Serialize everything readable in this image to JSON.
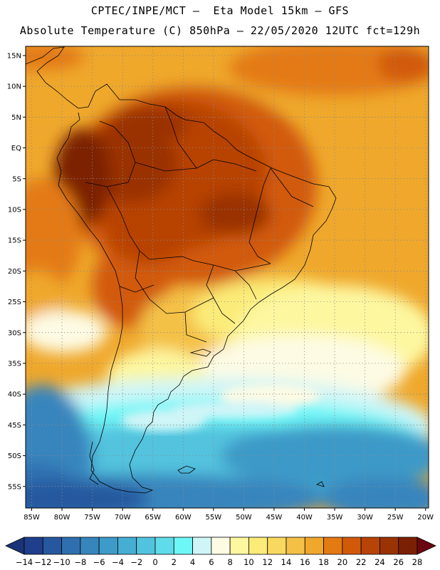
{
  "title": {
    "line1": "CPTEC/INPE/MCT –  Eta Model 15km – GFS",
    "line2": "Absolute Temperature (C) 850hPa – 22/05/2020 12UTC fct=129h"
  },
  "axes": {
    "lat_labels": [
      "15N",
      "10N",
      "5N",
      "EQ",
      "5S",
      "10S",
      "15S",
      "20S",
      "25S",
      "30S",
      "35S",
      "40S",
      "45S",
      "50S",
      "55S"
    ],
    "lon_labels": [
      "85W",
      "80W",
      "75W",
      "70W",
      "65W",
      "60W",
      "55W",
      "50W",
      "45W",
      "40W",
      "35W",
      "30W",
      "25W",
      "20W"
    ]
  },
  "extent": {
    "lon_min": -86,
    "lon_max": -19.5,
    "lat_min": -58.5,
    "lat_max": 16.5
  },
  "colorbar": {
    "labels": [
      "-14",
      "-12",
      "-10",
      "-8",
      "-6",
      "-4",
      "-2",
      "0",
      "2",
      "4",
      "6",
      "8",
      "10",
      "12",
      "14",
      "16",
      "18",
      "20",
      "22",
      "24",
      "26",
      "28"
    ],
    "colors": [
      "#1f3e8c",
      "#27589f",
      "#2f6fb0",
      "#3785bd",
      "#3e9ac8",
      "#46aed3",
      "#52c3de",
      "#60dbe9",
      "#6ef7f7",
      "#cff5f7",
      "#fdfbe4",
      "#fdf7a0",
      "#fbeb78",
      "#f8d960",
      "#f4c146",
      "#efa82c",
      "#e47a12",
      "#d15a0a",
      "#b84306",
      "#9a3304",
      "#7c2003"
    ],
    "low_color": "#1a3478",
    "high_color": "#6b0712"
  }
}
